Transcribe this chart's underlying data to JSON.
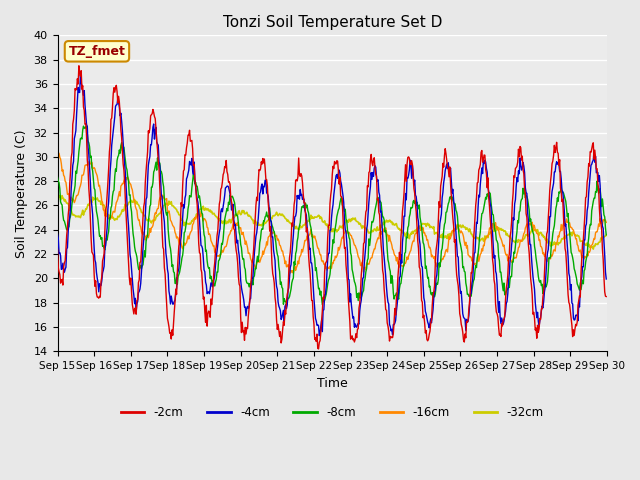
{
  "title": "Tonzi Soil Temperature Set D",
  "xlabel": "Time",
  "ylabel": "Soil Temperature (C)",
  "ylim": [
    14,
    40
  ],
  "yticks": [
    14,
    16,
    18,
    20,
    22,
    24,
    26,
    28,
    30,
    32,
    34,
    36,
    38,
    40
  ],
  "xlabels": [
    "Sep 15",
    "Sep 16",
    "Sep 17",
    "Sep 18",
    "Sep 19",
    "Sep 20",
    "Sep 21",
    "Sep 22",
    "Sep 23",
    "Sep 24",
    "Sep 25",
    "Sep 26",
    "Sep 27",
    "Sep 28",
    "Sep 29",
    "Sep 30"
  ],
  "colors": {
    "-2cm": "#dd0000",
    "-4cm": "#0000cc",
    "-8cm": "#00aa00",
    "-16cm": "#ff8800",
    "-32cm": "#cccc00"
  },
  "annotation_text": "TZ_fmet",
  "annotation_bg": "#ffffcc",
  "annotation_border": "#cc8800",
  "figsize": [
    6.4,
    4.8
  ],
  "dpi": 100
}
